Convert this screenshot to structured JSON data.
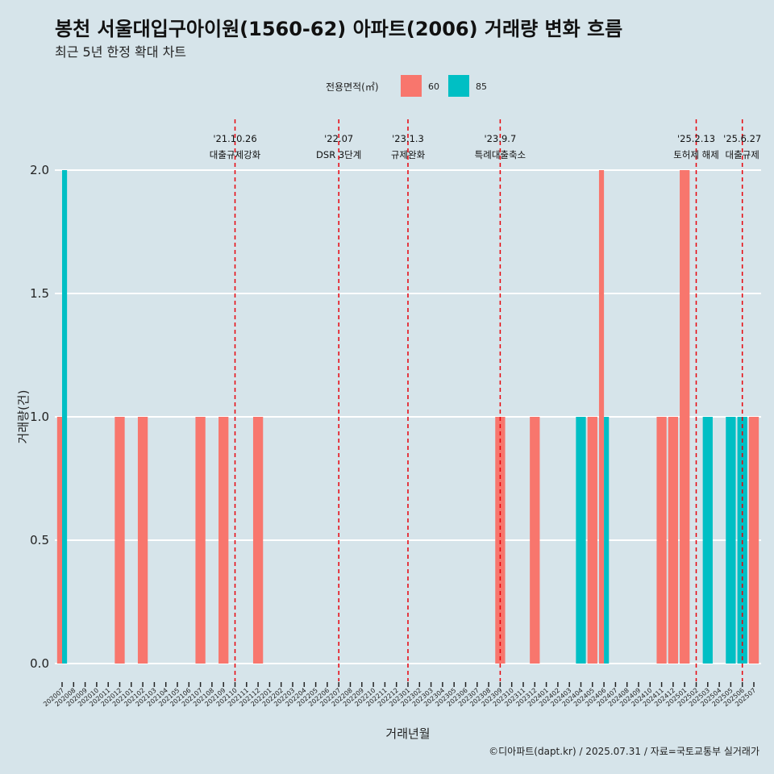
{
  "chart_data": {
    "type": "bar",
    "title": "봉천 서울대입구아이원(1560-62) 아파트(2006) 거래량 변화 흐름",
    "subtitle": "최근 5년 한정 확대 차트",
    "xlabel": "거래년월",
    "ylabel": "거래량(건)",
    "ylim": [
      0,
      2
    ],
    "yticks": [
      "0.0",
      "0.5",
      "1.0",
      "1.5",
      "2.0"
    ],
    "legend": {
      "title": "전용면적(㎡)",
      "position": "top"
    },
    "categories": [
      "202007",
      "202008",
      "202009",
      "202010",
      "202011",
      "202012",
      "202101",
      "202102",
      "202103",
      "202104",
      "202105",
      "202106",
      "202107",
      "202108",
      "202109",
      "202110",
      "202111",
      "202112",
      "202201",
      "202202",
      "202203",
      "202204",
      "202205",
      "202206",
      "202207",
      "202208",
      "202209",
      "202210",
      "202211",
      "202212",
      "202301",
      "202302",
      "202303",
      "202304",
      "202305",
      "202306",
      "202307",
      "202308",
      "202309",
      "202310",
      "202311",
      "202312",
      "202401",
      "202402",
      "202403",
      "202404",
      "202405",
      "202406",
      "202407",
      "202408",
      "202409",
      "202410",
      "202411",
      "202412",
      "202501",
      "202502",
      "202503",
      "202504",
      "202505",
      "202506",
      "202507"
    ],
    "series": [
      {
        "name": "60",
        "color": "#f8766d",
        "values": [
          1,
          0,
          0,
          0,
          0,
          1,
          0,
          1,
          0,
          0,
          0,
          0,
          1,
          0,
          1,
          0,
          0,
          1,
          0,
          0,
          0,
          0,
          0,
          0,
          0,
          0,
          0,
          0,
          0,
          0,
          0,
          0,
          0,
          0,
          0,
          0,
          0,
          0,
          1,
          0,
          0,
          1,
          0,
          0,
          0,
          0,
          1,
          2,
          0,
          0,
          0,
          0,
          1,
          1,
          2,
          0,
          0,
          0,
          0,
          0,
          1
        ]
      },
      {
        "name": "85",
        "color": "#00bfc4",
        "values": [
          2,
          0,
          0,
          0,
          0,
          0,
          0,
          0,
          0,
          0,
          0,
          0,
          0,
          0,
          0,
          0,
          0,
          0,
          0,
          0,
          0,
          0,
          0,
          0,
          0,
          0,
          0,
          0,
          0,
          0,
          0,
          0,
          0,
          0,
          0,
          0,
          0,
          0,
          0,
          0,
          0,
          0,
          0,
          0,
          0,
          1,
          0,
          1,
          0,
          0,
          0,
          0,
          0,
          0,
          0,
          0,
          1,
          0,
          1,
          1,
          0
        ]
      }
    ],
    "annotations": [
      {
        "date": "'21.10.26",
        "label": "대출규제강화",
        "x": "202110"
      },
      {
        "date": "'22.07",
        "label": "DSR 3단계",
        "x": "202207"
      },
      {
        "date": "'23.1.3",
        "label": "규제완화",
        "x": "202301"
      },
      {
        "date": "'23.9.7",
        "label": "특례대출축소",
        "x": "202309"
      },
      {
        "date": "'25.2.13",
        "label": "토허제 해제",
        "x": "202502"
      },
      {
        "date": "'25.6.27",
        "label": "대출규제",
        "x": "202506"
      }
    ],
    "grid": true,
    "caption": "©디아파트(dapt.kr) / 2025.07.31 / 자료=국토교통부 실거래가"
  }
}
